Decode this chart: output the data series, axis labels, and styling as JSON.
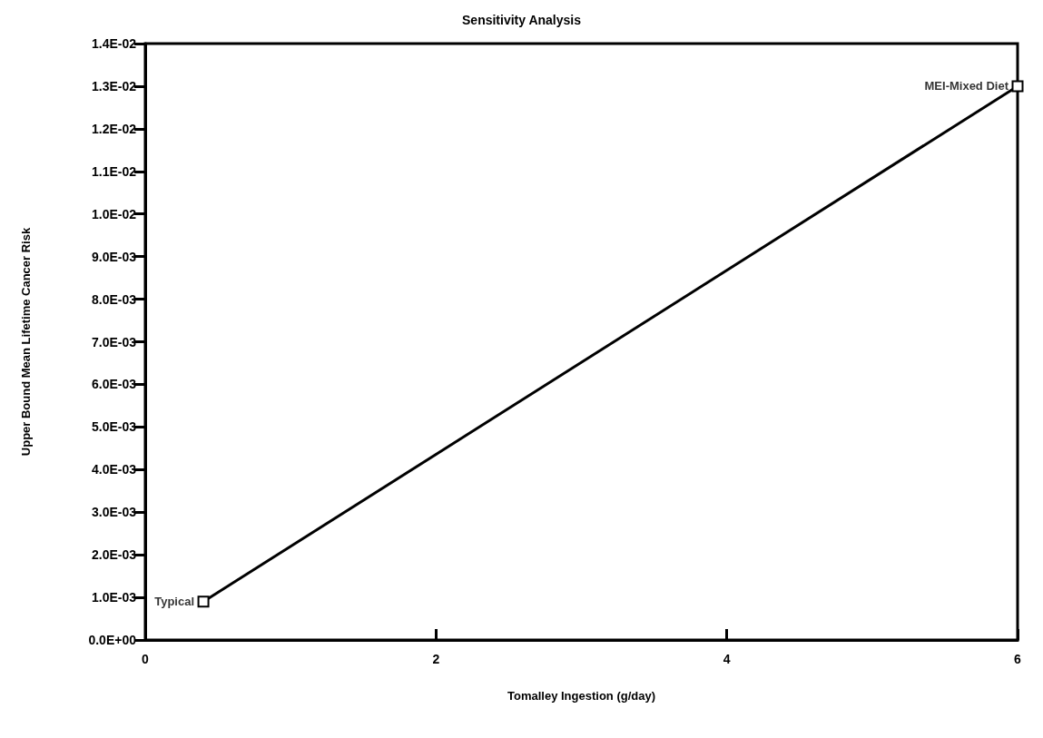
{
  "chart_data": {
    "type": "line",
    "title": "Sensitivity Analysis",
    "xlabel": "Tomalley Ingestion (g/day)",
    "ylabel": "Upper Bound Mean Lifetime Cancer Risk",
    "x": [
      0.4,
      6
    ],
    "series": [
      {
        "color": "#000000",
        "values": [
          0.0009,
          0.013
        ]
      }
    ],
    "marker": "square",
    "grid": false,
    "xlim": [
      0,
      6
    ],
    "xticks": [
      0,
      2,
      4,
      6
    ],
    "ylim": [
      0,
      0.014
    ],
    "yticks": [
      {
        "value": 0,
        "label": "0.0E+00"
      },
      {
        "value": 0.001,
        "label": "1.0E-03"
      },
      {
        "value": 0.002,
        "label": "2.0E-03"
      },
      {
        "value": 0.003,
        "label": "3.0E-03"
      },
      {
        "value": 0.004,
        "label": "4.0E-03"
      },
      {
        "value": 0.005,
        "label": "5.0E-03"
      },
      {
        "value": 0.006,
        "label": "6.0E-03"
      },
      {
        "value": 0.007,
        "label": "7.0E-03"
      },
      {
        "value": 0.008,
        "label": "8.0E-03"
      },
      {
        "value": 0.009,
        "label": "9.0E-03"
      },
      {
        "value": 0.01,
        "label": "1.0E-02"
      },
      {
        "value": 0.011,
        "label": "1.1E-02"
      },
      {
        "value": 0.012,
        "label": "1.2E-02"
      },
      {
        "value": 0.013,
        "label": "1.3E-02"
      },
      {
        "value": 0.014,
        "label": "1.4E-02"
      }
    ],
    "annotations": [
      {
        "text": "Typical",
        "x": 0.4,
        "y": 0.0009
      },
      {
        "text": "MEI-Mixed Diet",
        "x": 6,
        "y": 0.013
      }
    ]
  }
}
